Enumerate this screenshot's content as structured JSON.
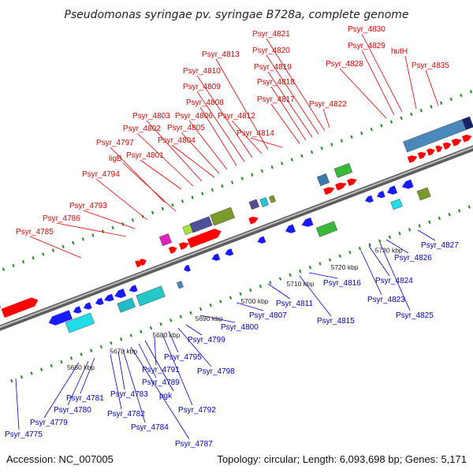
{
  "title": "Pseudomonas syringae pv. syringae B728a, complete genome",
  "accession": "Accession: NC_007005",
  "topology": "Topology: circular; Length: 6,093,698 bp; Genes: 5,171",
  "colors": {
    "forward_label": "#e00000",
    "reverse_label": "#0000cc",
    "forward_gene": "#ff0000",
    "reverse_gene": "#1a1aff",
    "backbone": "#7f7f7f",
    "tick": "#1f8a1f"
  },
  "kbp_labels": [
    "5660 kbp",
    "5670 kbp",
    "5680 kbp",
    "5690 kbp",
    "5700 kbp",
    "5710 kbp",
    "5720 kbp",
    "5730 kbp"
  ],
  "forward_genes": [
    "Psyr_4785",
    "Psyr_4786",
    "Psyr_4793",
    "Psyr_4794",
    "ligB",
    "Psyr_4797",
    "Psyr_4801",
    "Psyr_4802",
    "Psyr_4803",
    "Psyr_4804",
    "Psyr_4805",
    "Psyr_4806",
    "Psyr_4808",
    "Psyr_4809",
    "Psyr_4810",
    "Psyr_4812",
    "Psyr_4813",
    "Psyr_4814",
    "Psyr_4817",
    "Psyr_4818",
    "Psyr_4819",
    "Psyr_4820",
    "Psyr_4821",
    "Psyr_4822",
    "Psyr_4828",
    "Psyr_4829",
    "Psyr_4830",
    "hutH",
    "Psyr_4835"
  ],
  "reverse_genes": [
    "Psyr_4775",
    "Psyr_4779",
    "Psyr_4780",
    "Psyr_4781",
    "Psyr_4782",
    "Psyr_4783",
    "Psyr_4784",
    "Psyr_4787",
    "Psyr_4789",
    "pgk",
    "Psyr_4791",
    "Psyr_4792",
    "Psyr_4795",
    "Psyr_4798",
    "Psyr_4799",
    "Psyr_4800",
    "Psyr_4807",
    "Psyr_4811",
    "Psyr_4815",
    "Psyr_4816",
    "Psyr_4823",
    "Psyr_4824",
    "Psyr_4825",
    "Psyr_4826",
    "Psyr_4827"
  ]
}
